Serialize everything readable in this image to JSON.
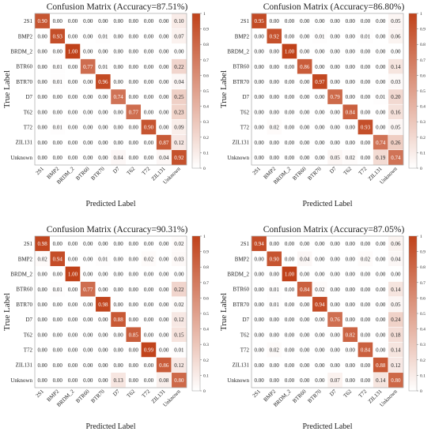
{
  "colors": {
    "low": "#ffffff",
    "high": "#c0421a",
    "text_dark": "#222222",
    "text_light": "#ffffff"
  },
  "chart_data": [
    {
      "type": "heatmap",
      "title": "Confusion Matrix (Accuracy=87.51%)",
      "xlabel": "Predicted Label",
      "ylabel": "True Label",
      "categories": [
        "2S1",
        "BMP2",
        "BRDM_2",
        "BTR60",
        "BTR70",
        "D7",
        "T62",
        "T72",
        "ZIL131",
        "Unknown"
      ],
      "colorbar_ticks": [
        "0",
        "0.1",
        "0.2",
        "0.3",
        "0.4",
        "0.5",
        "0.6",
        "0.7",
        "0.8",
        "0.9",
        "1"
      ],
      "values": [
        [
          0.9,
          0.0,
          0.0,
          0.0,
          0.0,
          0.0,
          0.0,
          0.0,
          0.0,
          0.1
        ],
        [
          0.0,
          0.93,
          0.0,
          0.0,
          0.01,
          0.0,
          0.0,
          0.0,
          0.0,
          0.07
        ],
        [
          0.0,
          0.0,
          1.0,
          0.0,
          0.0,
          0.0,
          0.0,
          0.0,
          0.0,
          0.0
        ],
        [
          0.0,
          0.01,
          0.0,
          0.77,
          0.01,
          0.0,
          0.0,
          0.0,
          0.0,
          0.22
        ],
        [
          0.0,
          0.01,
          0.0,
          0.0,
          0.96,
          0.0,
          0.0,
          0.0,
          0.0,
          0.04
        ],
        [
          0.0,
          0.0,
          0.0,
          0.0,
          0.0,
          0.74,
          0.0,
          0.0,
          0.0,
          0.25
        ],
        [
          0.0,
          0.0,
          0.0,
          0.0,
          0.0,
          0.0,
          0.77,
          0.0,
          0.0,
          0.23
        ],
        [
          0.0,
          0.01,
          0.0,
          0.0,
          0.0,
          0.0,
          0.0,
          0.9,
          0.0,
          0.09
        ],
        [
          0.0,
          0.0,
          0.0,
          0.0,
          0.0,
          0.0,
          0.0,
          0.0,
          0.87,
          0.12
        ],
        [
          0.0,
          0.0,
          0.0,
          0.0,
          0.0,
          0.04,
          0.0,
          0.0,
          0.04,
          0.92
        ]
      ]
    },
    {
      "type": "heatmap",
      "title": "Confusion Matrix (Accuracy=86.80%)",
      "xlabel": "Predicted Label",
      "ylabel": "True Label",
      "categories": [
        "2S1",
        "BMP2",
        "BRDM_2",
        "BTR60",
        "BTR70",
        "D7",
        "T62",
        "T72",
        "ZIL131",
        "Unknown"
      ],
      "colorbar_ticks": [
        "0",
        "0.1",
        "0.2",
        "0.3",
        "0.4",
        "0.5",
        "0.6",
        "0.7",
        "0.8",
        "0.9",
        "1"
      ],
      "values": [
        [
          0.95,
          0.0,
          0.0,
          0.0,
          0.0,
          0.0,
          0.0,
          0.0,
          0.0,
          0.05
        ],
        [
          0.0,
          0.92,
          0.0,
          0.0,
          0.01,
          0.0,
          0.0,
          0.01,
          0.0,
          0.06
        ],
        [
          0.0,
          0.0,
          1.0,
          0.0,
          0.0,
          0.0,
          0.0,
          0.0,
          0.0,
          0.0
        ],
        [
          0.0,
          0.0,
          0.0,
          0.86,
          0.0,
          0.0,
          0.0,
          0.0,
          0.0,
          0.14
        ],
        [
          0.0,
          0.0,
          0.0,
          0.0,
          0.97,
          0.0,
          0.0,
          0.0,
          0.0,
          0.03
        ],
        [
          0.0,
          0.0,
          0.0,
          0.0,
          0.0,
          0.79,
          0.0,
          0.0,
          0.01,
          0.2
        ],
        [
          0.0,
          0.0,
          0.0,
          0.0,
          0.0,
          0.0,
          0.84,
          0.0,
          0.0,
          0.16
        ],
        [
          0.0,
          0.02,
          0.0,
          0.0,
          0.0,
          0.0,
          0.0,
          0.93,
          0.0,
          0.05
        ],
        [
          0.0,
          0.0,
          0.0,
          0.0,
          0.0,
          0.0,
          0.0,
          0.0,
          0.74,
          0.26
        ],
        [
          0.0,
          0.0,
          0.0,
          0.0,
          0.0,
          0.05,
          0.02,
          0.0,
          0.19,
          0.74
        ]
      ]
    },
    {
      "type": "heatmap",
      "title": "Confusion Matrix (Accuracy=90.31%)",
      "xlabel": "Predicted Label",
      "ylabel": "True Label",
      "categories": [
        "2S1",
        "BMP2",
        "BRDM_2",
        "BTR60",
        "BTR70",
        "D7",
        "T62",
        "T72",
        "ZIL131",
        "Unknown"
      ],
      "colorbar_ticks": [
        "0",
        "0.1",
        "0.2",
        "0.3",
        "0.4",
        "0.5",
        "0.6",
        "0.7",
        "0.8",
        "0.9",
        "1"
      ],
      "values": [
        [
          0.98,
          0.0,
          0.0,
          0.0,
          0.0,
          0.0,
          0.0,
          0.0,
          0.0,
          0.02
        ],
        [
          0.02,
          0.94,
          0.0,
          0.0,
          0.01,
          0.0,
          0.0,
          0.02,
          0.0,
          0.03
        ],
        [
          0.0,
          0.0,
          1.0,
          0.0,
          0.0,
          0.0,
          0.0,
          0.0,
          0.0,
          0.0
        ],
        [
          0.0,
          0.01,
          0.0,
          0.77,
          0.0,
          0.0,
          0.0,
          0.0,
          0.0,
          0.22
        ],
        [
          0.0,
          0.0,
          0.0,
          0.0,
          0.98,
          0.0,
          0.0,
          0.0,
          0.0,
          0.02
        ],
        [
          0.0,
          0.0,
          0.0,
          0.0,
          0.0,
          0.88,
          0.0,
          0.0,
          0.0,
          0.12
        ],
        [
          0.0,
          0.0,
          0.0,
          0.0,
          0.0,
          0.0,
          0.85,
          0.0,
          0.0,
          0.15
        ],
        [
          0.0,
          0.0,
          0.0,
          0.0,
          0.0,
          0.0,
          0.0,
          0.99,
          0.0,
          0.01
        ],
        [
          0.0,
          0.0,
          0.0,
          0.0,
          0.0,
          0.0,
          0.0,
          0.0,
          0.86,
          0.12
        ],
        [
          0.0,
          0.0,
          0.0,
          0.0,
          0.0,
          0.13,
          0.0,
          0.0,
          0.08,
          0.8
        ]
      ]
    },
    {
      "type": "heatmap",
      "title": "Confusion Matrix (Accuracy=87.05%)",
      "xlabel": "Predicted Label",
      "ylabel": "True Label",
      "categories": [
        "2S1",
        "BMP2",
        "BRDM_2",
        "BTR60",
        "BTR70",
        "D7",
        "T62",
        "T72",
        "ZIL131",
        "Unknown"
      ],
      "colorbar_ticks": [
        "0",
        "0.1",
        "0.2",
        "0.3",
        "0.4",
        "0.5",
        "0.6",
        "0.7",
        "0.8",
        "0.9",
        "1"
      ],
      "values": [
        [
          0.94,
          0.0,
          0.0,
          0.0,
          0.0,
          0.0,
          0.0,
          0.0,
          0.0,
          0.06
        ],
        [
          0.0,
          0.9,
          0.0,
          0.04,
          0.0,
          0.0,
          0.0,
          0.02,
          0.0,
          0.04
        ],
        [
          0.0,
          0.0,
          1.0,
          0.0,
          0.0,
          0.0,
          0.0,
          0.0,
          0.0,
          0.0
        ],
        [
          0.0,
          0.01,
          0.0,
          0.84,
          0.02,
          0.0,
          0.0,
          0.0,
          0.0,
          0.14
        ],
        [
          0.0,
          0.01,
          0.0,
          0.0,
          0.94,
          0.0,
          0.0,
          0.0,
          0.0,
          0.05
        ],
        [
          0.0,
          0.0,
          0.0,
          0.0,
          0.0,
          0.76,
          0.0,
          0.0,
          0.0,
          0.24
        ],
        [
          0.0,
          0.0,
          0.0,
          0.0,
          0.0,
          0.0,
          0.82,
          0.0,
          0.0,
          0.18
        ],
        [
          0.0,
          0.02,
          0.0,
          0.0,
          0.0,
          0.0,
          0.0,
          0.84,
          0.0,
          0.14
        ],
        [
          0.0,
          0.0,
          0.0,
          0.0,
          0.0,
          0.0,
          0.0,
          0.0,
          0.88,
          0.12
        ],
        [
          0.0,
          0.0,
          0.0,
          0.0,
          0.0,
          0.07,
          0.0,
          0.0,
          0.14,
          0.8
        ]
      ]
    }
  ]
}
